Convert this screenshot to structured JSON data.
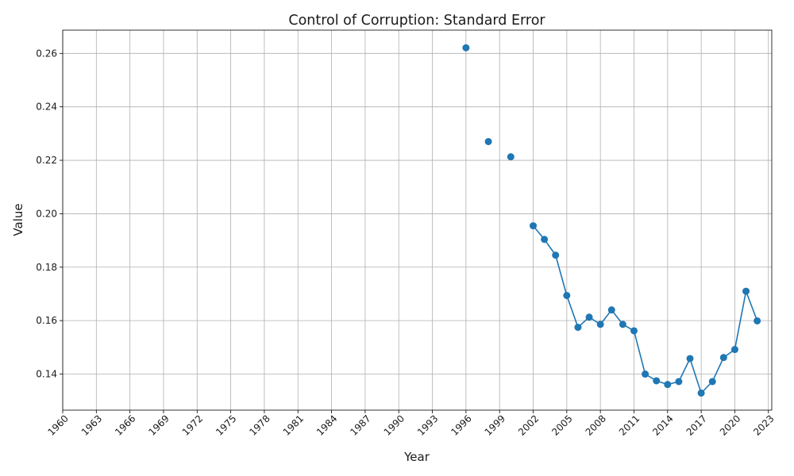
{
  "chart_data": {
    "type": "line",
    "title": "Control of Corruption: Standard Error",
    "xlabel": "Year",
    "ylabel": "Value",
    "xlim": [
      1960,
      2023.3
    ],
    "ylim": [
      0.1265,
      0.2687
    ],
    "x_ticks": [
      1960,
      1963,
      1966,
      1969,
      1972,
      1975,
      1978,
      1981,
      1984,
      1987,
      1990,
      1993,
      1996,
      1999,
      2002,
      2005,
      2008,
      2011,
      2014,
      2017,
      2020,
      2023
    ],
    "y_ticks": [
      0.14,
      0.16,
      0.18,
      0.2,
      0.22,
      0.24,
      0.26
    ],
    "grid": true,
    "series": [
      {
        "color": "#1f77b4",
        "marker": "circle",
        "points": [
          {
            "x": 1996,
            "y": 0.2621
          },
          {
            "x": 1998,
            "y": 0.227
          },
          {
            "x": 2000,
            "y": 0.2213
          },
          {
            "x": 2002,
            "y": 0.1955
          },
          {
            "x": 2003,
            "y": 0.1904
          },
          {
            "x": 2004,
            "y": 0.1845
          },
          {
            "x": 2005,
            "y": 0.1694
          },
          {
            "x": 2006,
            "y": 0.1575
          },
          {
            "x": 2007,
            "y": 0.1613
          },
          {
            "x": 2008,
            "y": 0.1586
          },
          {
            "x": 2009,
            "y": 0.164
          },
          {
            "x": 2010,
            "y": 0.1586
          },
          {
            "x": 2011,
            "y": 0.1562
          },
          {
            "x": 2012,
            "y": 0.14
          },
          {
            "x": 2013,
            "y": 0.1375
          },
          {
            "x": 2014,
            "y": 0.1361
          },
          {
            "x": 2015,
            "y": 0.1372
          },
          {
            "x": 2016,
            "y": 0.1458
          },
          {
            "x": 2017,
            "y": 0.1329
          },
          {
            "x": 2018,
            "y": 0.1372
          },
          {
            "x": 2019,
            "y": 0.1462
          },
          {
            "x": 2020,
            "y": 0.1492
          },
          {
            "x": 2021,
            "y": 0.171
          },
          {
            "x": 2022,
            "y": 0.1599
          }
        ]
      }
    ]
  }
}
